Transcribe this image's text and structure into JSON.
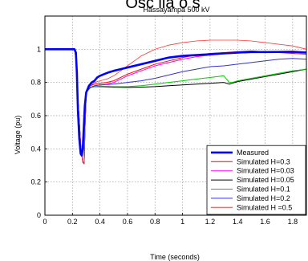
{
  "heading_fragment": "Osc   lla  o  s",
  "chart_data": {
    "type": "line",
    "title": "Hassayampa 500 kV",
    "xlabel": "Time (seconds)",
    "ylabel": "Voltage (pu)",
    "xlim": [
      0,
      1.9
    ],
    "ylim": [
      0,
      1.2
    ],
    "xticks": [
      "0",
      "0.2",
      "0.4",
      "0.6",
      "0.8",
      "1",
      "1.2",
      "1.4",
      "1.6",
      "1.8"
    ],
    "yticks": [
      "0",
      "0.2",
      "0.4",
      "0.6",
      "0.8",
      "1"
    ],
    "grid": true,
    "legend_position": "bottom-right",
    "series": [
      {
        "name": "Measured",
        "color": "#0000ff",
        "thick": true,
        "x": [
          0,
          0.2,
          0.215,
          0.225,
          0.232,
          0.24,
          0.25,
          0.26,
          0.268,
          0.275,
          0.282,
          0.29,
          0.3,
          0.32,
          0.34,
          0.36,
          0.38,
          0.4,
          0.43,
          0.46,
          0.5,
          0.55,
          0.6,
          0.7,
          0.8,
          0.9,
          1.0,
          1.1,
          1.2,
          1.3,
          1.4,
          1.5,
          1.6,
          1.7,
          1.8,
          1.9
        ],
        "y": [
          1.0,
          1.0,
          1.0,
          0.98,
          0.86,
          0.63,
          0.46,
          0.37,
          0.36,
          0.4,
          0.52,
          0.66,
          0.74,
          0.78,
          0.8,
          0.81,
          0.83,
          0.84,
          0.85,
          0.86,
          0.87,
          0.88,
          0.89,
          0.91,
          0.93,
          0.95,
          0.96,
          0.965,
          0.97,
          0.975,
          0.98,
          0.983,
          0.983,
          0.984,
          0.985,
          0.98
        ]
      },
      {
        "name": "Simulated H=0.3",
        "color": "#ff0000",
        "x": [
          0,
          0.2,
          0.215,
          0.225,
          0.24,
          0.26,
          0.275,
          0.285,
          0.29,
          0.3,
          0.33,
          0.36,
          0.4,
          0.45,
          0.5,
          0.55,
          0.6,
          0.7,
          0.8,
          0.9,
          1.0,
          1.1,
          1.2,
          1.3,
          1.4,
          1.5,
          1.6,
          1.7,
          1.8,
          1.9
        ],
        "y": [
          1.0,
          1.0,
          1.0,
          0.95,
          0.7,
          0.42,
          0.32,
          0.31,
          0.5,
          0.74,
          0.78,
          0.79,
          0.795,
          0.8,
          0.81,
          0.83,
          0.85,
          0.88,
          0.91,
          0.93,
          0.95,
          0.965,
          0.975,
          0.98,
          0.985,
          0.99,
          0.985,
          0.98,
          0.975,
          0.97
        ]
      },
      {
        "name": "Simulated H=0.03",
        "color": "#ff00ff",
        "x": [
          0,
          0.2,
          0.215,
          0.225,
          0.24,
          0.26,
          0.275,
          0.285,
          0.29,
          0.3,
          0.33,
          0.36,
          0.4,
          0.45,
          0.5,
          0.55,
          0.6,
          0.7,
          0.8,
          0.9,
          1.0,
          1.1,
          1.2,
          1.3,
          1.4,
          1.5,
          1.6,
          1.7,
          1.8,
          1.9
        ],
        "y": [
          1.0,
          1.0,
          1.0,
          0.95,
          0.7,
          0.42,
          0.32,
          0.31,
          0.5,
          0.74,
          0.77,
          0.78,
          0.785,
          0.79,
          0.8,
          0.82,
          0.84,
          0.87,
          0.9,
          0.92,
          0.94,
          0.955,
          0.965,
          0.972,
          0.977,
          0.98,
          0.982,
          0.982,
          0.98,
          0.98
        ]
      },
      {
        "name": "Simulated H=0.05",
        "color": "#000000",
        "x": [
          0,
          0.2,
          0.215,
          0.225,
          0.24,
          0.26,
          0.275,
          0.285,
          0.29,
          0.3,
          0.33,
          0.36,
          0.4,
          0.5,
          0.6,
          0.7,
          0.8,
          0.9,
          1.0,
          1.1,
          1.2,
          1.3,
          1.34,
          1.36,
          1.4,
          1.5,
          1.6,
          1.7,
          1.8,
          1.9
        ],
        "y": [
          1.0,
          1.0,
          1.0,
          0.95,
          0.7,
          0.42,
          0.32,
          0.31,
          0.5,
          0.74,
          0.77,
          0.775,
          0.775,
          0.772,
          0.77,
          0.772,
          0.775,
          0.78,
          0.785,
          0.79,
          0.795,
          0.8,
          0.79,
          0.795,
          0.805,
          0.82,
          0.835,
          0.85,
          0.865,
          0.88
        ]
      },
      {
        "name": "Simulated H=0.1",
        "color": "#00cc00",
        "x": [
          0,
          0.2,
          0.215,
          0.225,
          0.24,
          0.26,
          0.275,
          0.285,
          0.29,
          0.3,
          0.33,
          0.36,
          0.4,
          0.5,
          0.6,
          0.7,
          0.8,
          0.9,
          1.0,
          1.1,
          1.2,
          1.3,
          1.34,
          1.36,
          1.4,
          1.5,
          1.6,
          1.7,
          1.8,
          1.9
        ],
        "y": [
          1.0,
          1.0,
          1.0,
          0.95,
          0.7,
          0.42,
          0.32,
          0.31,
          0.5,
          0.74,
          0.77,
          0.775,
          0.778,
          0.775,
          0.775,
          0.78,
          0.79,
          0.8,
          0.81,
          0.82,
          0.83,
          0.84,
          0.8,
          0.8,
          0.81,
          0.825,
          0.84,
          0.855,
          0.87,
          0.88
        ]
      },
      {
        "name": "Simulated H=0.2",
        "color": "#3333cc",
        "x": [
          0,
          0.2,
          0.215,
          0.225,
          0.24,
          0.26,
          0.275,
          0.285,
          0.29,
          0.3,
          0.33,
          0.36,
          0.4,
          0.5,
          0.6,
          0.7,
          0.8,
          0.9,
          1.0,
          1.1,
          1.2,
          1.3,
          1.4,
          1.5,
          1.6,
          1.7,
          1.8,
          1.9
        ],
        "y": [
          1.0,
          1.0,
          1.0,
          0.95,
          0.7,
          0.42,
          0.32,
          0.31,
          0.5,
          0.74,
          0.77,
          0.78,
          0.785,
          0.79,
          0.8,
          0.81,
          0.825,
          0.845,
          0.865,
          0.88,
          0.895,
          0.9,
          0.91,
          0.92,
          0.93,
          0.94,
          0.945,
          0.94
        ]
      },
      {
        "name": "Simulated H =0.5",
        "color": "#ff3333",
        "thin": true,
        "x": [
          0,
          0.2,
          0.215,
          0.225,
          0.24,
          0.26,
          0.275,
          0.285,
          0.29,
          0.3,
          0.33,
          0.36,
          0.4,
          0.45,
          0.5,
          0.55,
          0.6,
          0.65,
          0.7,
          0.8,
          0.9,
          1.0,
          1.1,
          1.2,
          1.3,
          1.4,
          1.5,
          1.6,
          1.7,
          1.8,
          1.9
        ],
        "y": [
          1.0,
          1.0,
          1.0,
          0.95,
          0.7,
          0.42,
          0.32,
          0.31,
          0.5,
          0.74,
          0.78,
          0.8,
          0.81,
          0.82,
          0.84,
          0.87,
          0.9,
          0.93,
          0.96,
          1.0,
          1.025,
          1.04,
          1.05,
          1.055,
          1.055,
          1.055,
          1.05,
          1.04,
          1.03,
          1.02,
          1.0
        ]
      }
    ]
  }
}
